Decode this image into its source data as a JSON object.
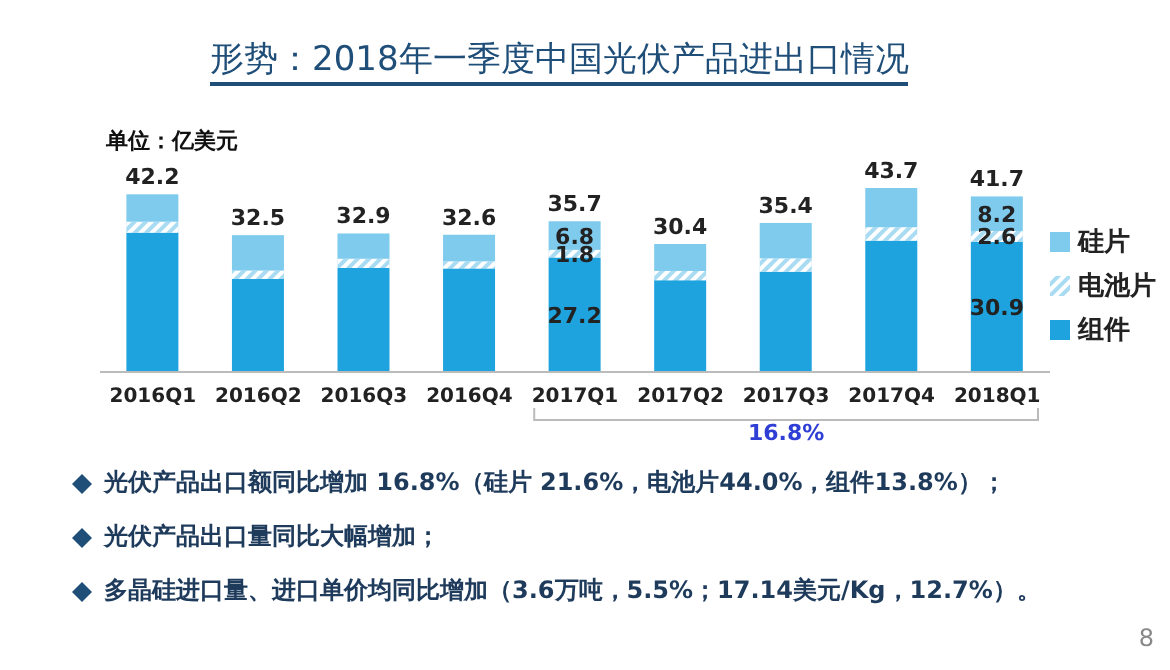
{
  "chart_data": {
    "type": "bar",
    "title": "形势：2018年一季度中国光伏产品进出口情况",
    "stacked": true,
    "legend": "right",
    "categories": [
      "2016Q1",
      "2016Q2",
      "2016Q3",
      "2016Q4",
      "2017Q1",
      "2017Q2",
      "2017Q3",
      "2017Q4",
      "2018Q1"
    ],
    "series": [
      {
        "name": "组件",
        "color": "#1ea3df",
        "values": [
          33.1,
          22.1,
          24.7,
          24.6,
          27.2,
          21.8,
          23.8,
          31.2,
          30.9
        ],
        "value_labels": [
          null,
          null,
          null,
          null,
          "27.2",
          null,
          null,
          null,
          "30.9"
        ]
      },
      {
        "name": "电池片",
        "color": "#a9dcf2",
        "values": [
          2.6,
          2.0,
          2.2,
          1.7,
          1.8,
          2.2,
          3.2,
          3.2,
          2.6
        ],
        "value_labels": [
          null,
          null,
          null,
          null,
          "1.8",
          null,
          null,
          null,
          "2.6"
        ]
      },
      {
        "name": "硅片",
        "color": "#7fcbee",
        "values": [
          6.5,
          8.4,
          6.0,
          6.3,
          6.8,
          6.4,
          8.4,
          9.3,
          8.2
        ],
        "value_labels": [
          null,
          null,
          null,
          null,
          "6.8",
          null,
          null,
          null,
          "8.2"
        ]
      }
    ],
    "totals": [
      "42.2",
      "32.5",
      "32.9",
      "32.6",
      "35.7",
      "30.4",
      "35.4",
      "43.7",
      "41.7"
    ],
    "annotations": [
      "单位：亿美元",
      "16.8%",
      "光伏产品出口额同比增加 16.8%（硅片 21.6%，电池片44.0%，组件13.8%）；",
      "光伏产品出口量同比大幅增加；",
      "多晶硅进口量、进口单价均同比增加（3.6万吨，5.5%；17.14美元/Kg，12.7%）。",
      "8"
    ]
  }
}
